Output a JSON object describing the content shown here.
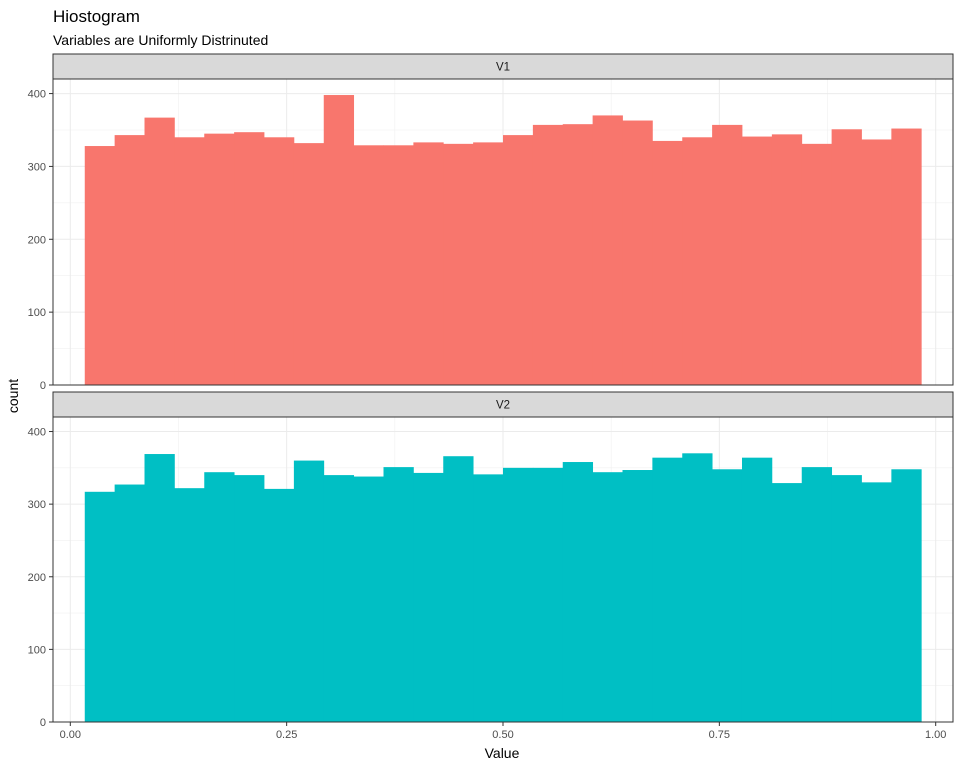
{
  "chart_data": {
    "type": "bar",
    "title": "Hiostogram",
    "subtitle": "Variables are Uniformly Distrinuted",
    "xlabel": "Value",
    "ylabel": "count",
    "xlim": [
      -0.02,
      1.02
    ],
    "ylim": [
      0,
      420
    ],
    "x_ticks": [
      0.0,
      0.25,
      0.5,
      0.75,
      1.0
    ],
    "x_tick_labels": [
      "0.00",
      "0.25",
      "0.50",
      "0.75",
      "1.00"
    ],
    "y_ticks": [
      0,
      100,
      200,
      300,
      400
    ],
    "y_tick_labels": [
      "0",
      "100",
      "200",
      "300",
      "400"
    ],
    "grid": true,
    "bin_range": [
      0.0167,
      0.9833
    ],
    "facets": [
      {
        "label": "V1",
        "color": "#F8766D",
        "values": [
          328,
          343,
          367,
          340,
          345,
          347,
          340,
          332,
          398,
          329,
          329,
          333,
          331,
          333,
          343,
          357,
          358,
          370,
          363,
          335,
          340,
          357,
          341,
          344,
          331,
          351,
          337,
          352
        ]
      },
      {
        "label": "V2",
        "color": "#00BFC4",
        "values": [
          317,
          327,
          369,
          322,
          344,
          340,
          321,
          360,
          340,
          338,
          351,
          343,
          366,
          341,
          350,
          350,
          358,
          344,
          347,
          364,
          370,
          348,
          364,
          329,
          351,
          340,
          330,
          348
        ]
      }
    ]
  }
}
